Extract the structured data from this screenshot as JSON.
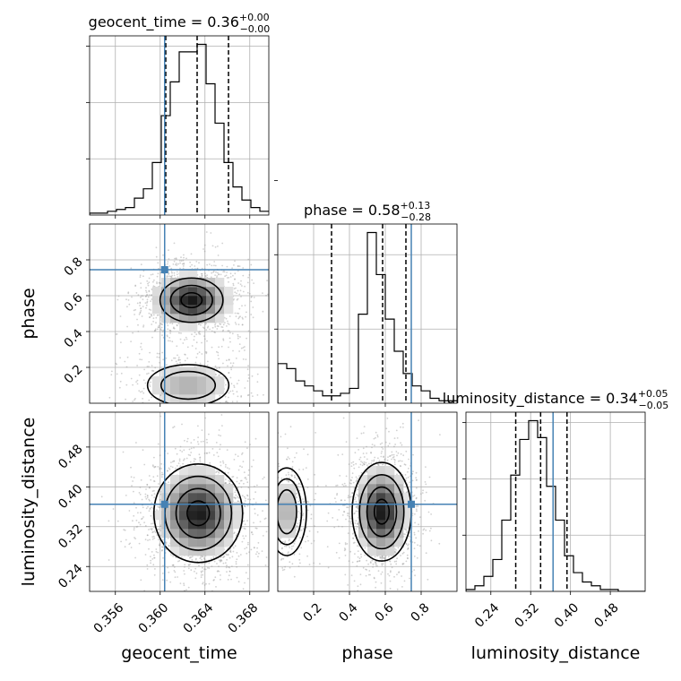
{
  "chart_data": {
    "type": "corner",
    "parameters": [
      {
        "name": "geocent_time",
        "xlabel": "geocent_time",
        "title_text": "geocent_time = 0.36",
        "title_sup": "+0.00",
        "title_sub": "−0.00",
        "range": [
          0.3537,
          0.3697
        ],
        "ticks": [
          0.356,
          0.36,
          0.364,
          0.368
        ],
        "tick_labels": [
          "0.356",
          "0.360",
          "0.364",
          "0.368"
        ],
        "truth": 0.3604,
        "quantiles": [
          0.3605,
          0.3633,
          0.3661
        ],
        "hist_edges_start": 0.3537,
        "hist_edges_step": 0.0008,
        "hist_counts": [
          1,
          1,
          2,
          3,
          4,
          9,
          14,
          28,
          53,
          71,
          87,
          87,
          91,
          70,
          49,
          28,
          15,
          8,
          4,
          2
        ]
      },
      {
        "name": "phase",
        "xlabel": "phase",
        "ylabel": "phase",
        "title_text": "phase = 0.58",
        "title_sup": "+0.13",
        "title_sub": "−0.28",
        "range": [
          0.0,
          1.0
        ],
        "ticks": [
          0.2,
          0.4,
          0.6,
          0.8
        ],
        "tick_labels": [
          "0.2",
          "0.4",
          "0.6",
          "0.8"
        ],
        "truth": 0.745,
        "quantiles": [
          0.3,
          0.585,
          0.715
        ],
        "hist_edges_start": 0.0,
        "hist_edges_step": 0.05,
        "hist_counts": [
          16,
          14,
          9,
          7,
          5,
          3,
          3,
          4,
          6,
          36,
          69,
          52,
          34,
          21,
          12,
          7,
          5,
          2,
          1,
          1
        ]
      },
      {
        "name": "luminosity_distance",
        "xlabel": "luminosity_distance",
        "ylabel": "luminosity_distance",
        "title_text": "luminosity_distance = 0.34",
        "title_sup": "+0.05",
        "title_sub": "−0.05",
        "range": [
          0.19,
          0.55
        ],
        "ticks": [
          0.24,
          0.32,
          0.4,
          0.48
        ],
        "tick_labels": [
          "0.24",
          "0.32",
          "0.40",
          "0.48"
        ],
        "truth": 0.365,
        "quantiles": [
          0.29,
          0.34,
          0.393
        ],
        "hist_edges_start": 0.19,
        "hist_edges_step": 0.018,
        "hist_counts": [
          1,
          3,
          8,
          17,
          38,
          62,
          81,
          91,
          82,
          56,
          38,
          19,
          10,
          5,
          3,
          1,
          1,
          0,
          0,
          0
        ]
      }
    ],
    "pairs": [
      {
        "x": "geocent_time",
        "y": "phase",
        "peak": [
          0.3628,
          0.575
        ],
        "spread": [
          0.0017,
          0.075
        ],
        "secondary_peak": [
          0.3625,
          0.1
        ],
        "secondary_spread": [
          0.0022,
          0.07
        ],
        "contours": 3
      },
      {
        "x": "geocent_time",
        "y": "luminosity_distance",
        "peak": [
          0.3634,
          0.347
        ],
        "spread": [
          0.0018,
          0.045
        ],
        "contours": 4
      },
      {
        "x": "phase",
        "y": "luminosity_distance",
        "peak": [
          0.58,
          0.35
        ],
        "spread": [
          0.075,
          0.045
        ],
        "secondary_peak": [
          0.05,
          0.35
        ],
        "secondary_spread": [
          0.05,
          0.04
        ],
        "contours": 4
      }
    ],
    "truth_color": "#4682b4",
    "quantile_style": "dashed",
    "grid": true
  }
}
